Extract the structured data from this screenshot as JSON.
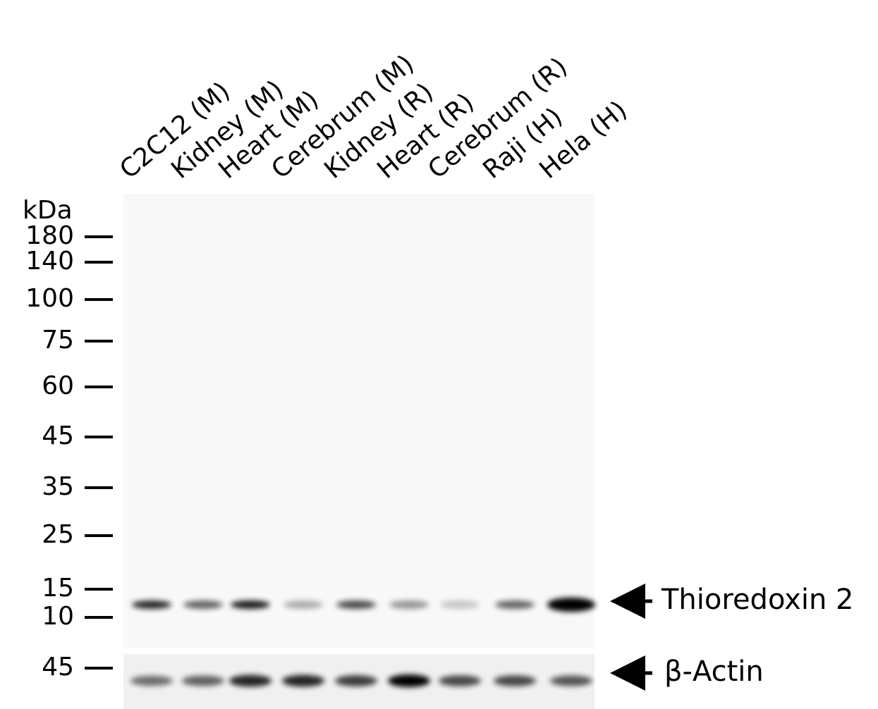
{
  "lanes": [
    "C2C12 (M)",
    "Kidney (M)",
    "Heart (M)",
    "Cerebrum (M)",
    "Kidney (R)",
    "Heart (R)",
    "Cerebrum (R)",
    "Raji (H)",
    "Hela (H)"
  ],
  "kda_label": "kDa",
  "markers": [
    "180",
    "140",
    "100",
    "75",
    "60",
    "45",
    "35",
    "25",
    "15",
    "10"
  ],
  "actin_marker": "45",
  "band_labels": [
    "Thioredoxin 2",
    "β-Actin"
  ]
}
